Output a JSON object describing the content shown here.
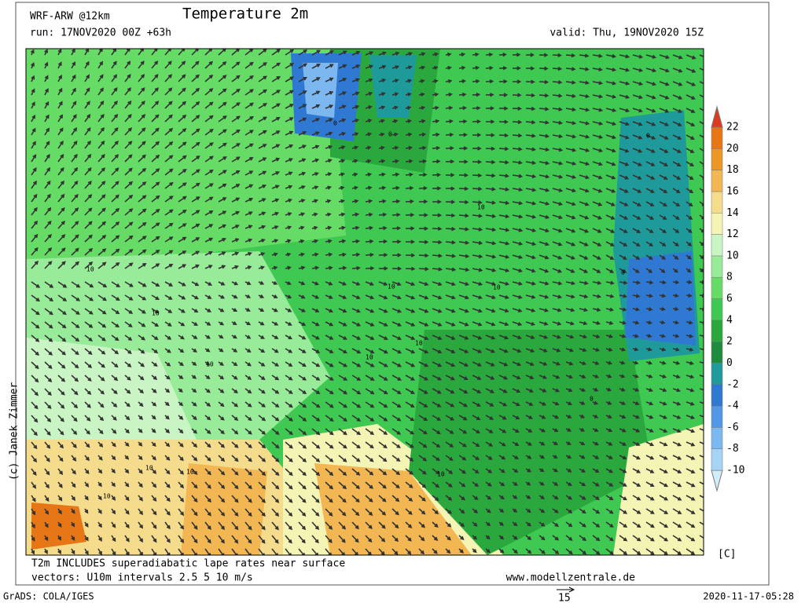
{
  "header": {
    "model": "WRF-ARW @12km",
    "title": "Temperature 2m",
    "run": "run: 17NOV2020 00Z +63h",
    "valid": "valid: Thu, 19NOV2020 15Z"
  },
  "colorbar": {
    "levels": [
      -10,
      -8,
      -6,
      -4,
      -2,
      0,
      2,
      4,
      6,
      8,
      10,
      12,
      14,
      16,
      18,
      20,
      22
    ],
    "colors": [
      "#d2ecfa",
      "#a6d4f5",
      "#7cb8ef",
      "#5298e6",
      "#2f79d3",
      "#1f9a9a",
      "#1e8c3c",
      "#2aa83e",
      "#3fc852",
      "#66dc66",
      "#98eb98",
      "#c9f5c4",
      "#f4f4b4",
      "#f5dc8c",
      "#f2b652",
      "#ec9628",
      "#e67616",
      "#dc3c1e"
    ],
    "unit": "[C]"
  },
  "map": {
    "contour_labels": [
      "10",
      "0",
      "0",
      "0",
      "10",
      "10",
      "10",
      "10",
      "10",
      "10",
      "0",
      "10",
      "10",
      "0",
      "10",
      "10",
      "10"
    ]
  },
  "footer": {
    "note": "T2m INCLUDES superadiabatic lape rates near surface",
    "vectors": "vectors: U10m intervals 2.5 5 10 m/s",
    "website": "www.modellzentrale.de",
    "copyright": "(c) Janek Zimmer",
    "grads": "GrADS: COLA/IGES",
    "vector_scale": "15",
    "timestamp": "2020-11-17-05:28"
  }
}
